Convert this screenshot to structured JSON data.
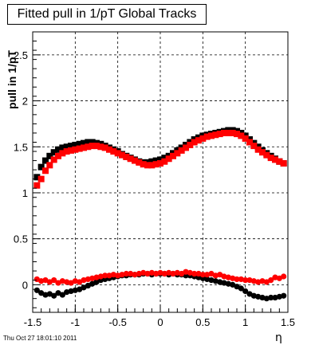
{
  "chart_data": {
    "type": "scatter",
    "title": "Fitted pull in 1/pT  Global Tracks",
    "xlabel": "η",
    "ylabel": "pull in 1/pT",
    "xlim": [
      -1.5,
      1.5
    ],
    "ylim": [
      -0.3,
      2.75
    ],
    "x_ticks": [
      "-1.5",
      "-1",
      "-0.5",
      "0",
      "0.5",
      "1",
      "1.5"
    ],
    "y_ticks": [
      "0",
      "0.5",
      "1",
      "1.5",
      "2",
      "2.5"
    ],
    "grid": true,
    "series": [
      {
        "color": "#000000",
        "x": [
          -1.45,
          -1.4,
          -1.35,
          -1.3,
          -1.25,
          -1.2,
          -1.15,
          -1.1,
          -1.05,
          -1.0,
          -0.95,
          -0.9,
          -0.85,
          -0.8,
          -0.75,
          -0.7,
          -0.65,
          -0.6,
          -0.55,
          -0.5,
          -0.45,
          -0.4,
          -0.35,
          -0.3,
          -0.25,
          -0.2,
          -0.15,
          -0.1,
          -0.05,
          0.0,
          0.05,
          0.1,
          0.15,
          0.2,
          0.25,
          0.3,
          0.35,
          0.4,
          0.45,
          0.5,
          0.55,
          0.6,
          0.65,
          0.7,
          0.75,
          0.8,
          0.85,
          0.9,
          0.95,
          1.0,
          1.05,
          1.1,
          1.15,
          1.2,
          1.25,
          1.3,
          1.35,
          1.4,
          1.45
        ],
        "y": [
          1.17,
          1.28,
          1.35,
          1.4,
          1.44,
          1.47,
          1.49,
          1.5,
          1.51,
          1.52,
          1.53,
          1.54,
          1.55,
          1.55,
          1.54,
          1.53,
          1.51,
          1.49,
          1.47,
          1.45,
          1.42,
          1.4,
          1.38,
          1.36,
          1.34,
          1.33,
          1.33,
          1.34,
          1.35,
          1.36,
          1.38,
          1.4,
          1.43,
          1.46,
          1.49,
          1.52,
          1.55,
          1.58,
          1.6,
          1.62,
          1.63,
          1.64,
          1.65,
          1.66,
          1.67,
          1.68,
          1.68,
          1.67,
          1.65,
          1.62,
          1.58,
          1.54,
          1.5,
          1.46,
          1.43,
          1.4,
          1.37,
          1.34,
          1.32
        ]
      },
      {
        "color": "#ff0000",
        "x": [
          -1.45,
          -1.4,
          -1.35,
          -1.3,
          -1.25,
          -1.2,
          -1.15,
          -1.1,
          -1.05,
          -1.0,
          -0.95,
          -0.9,
          -0.85,
          -0.8,
          -0.75,
          -0.7,
          -0.65,
          -0.6,
          -0.55,
          -0.5,
          -0.45,
          -0.4,
          -0.35,
          -0.3,
          -0.25,
          -0.2,
          -0.15,
          -0.1,
          -0.05,
          0.0,
          0.05,
          0.1,
          0.15,
          0.2,
          0.25,
          0.3,
          0.35,
          0.4,
          0.45,
          0.5,
          0.55,
          0.6,
          0.65,
          0.7,
          0.75,
          0.8,
          0.85,
          0.9,
          0.95,
          1.0,
          1.05,
          1.1,
          1.15,
          1.2,
          1.25,
          1.3,
          1.35,
          1.4,
          1.45
        ],
        "y": [
          1.08,
          1.15,
          1.24,
          1.3,
          1.36,
          1.4,
          1.43,
          1.45,
          1.46,
          1.47,
          1.48,
          1.49,
          1.5,
          1.51,
          1.51,
          1.5,
          1.49,
          1.47,
          1.45,
          1.43,
          1.41,
          1.39,
          1.37,
          1.35,
          1.33,
          1.31,
          1.3,
          1.3,
          1.31,
          1.32,
          1.34,
          1.37,
          1.4,
          1.43,
          1.46,
          1.49,
          1.52,
          1.55,
          1.57,
          1.59,
          1.61,
          1.62,
          1.63,
          1.64,
          1.65,
          1.65,
          1.65,
          1.64,
          1.62,
          1.59,
          1.55,
          1.51,
          1.47,
          1.44,
          1.41,
          1.38,
          1.36,
          1.34,
          1.32
        ]
      },
      {
        "color": "#000000",
        "x": [
          -1.45,
          -1.4,
          -1.35,
          -1.3,
          -1.25,
          -1.2,
          -1.15,
          -1.1,
          -1.05,
          -1.0,
          -0.95,
          -0.9,
          -0.85,
          -0.8,
          -0.75,
          -0.7,
          -0.65,
          -0.6,
          -0.55,
          -0.5,
          -0.45,
          -0.4,
          -0.35,
          -0.3,
          -0.25,
          -0.2,
          -0.15,
          -0.1,
          -0.05,
          0.0,
          0.05,
          0.1,
          0.15,
          0.2,
          0.25,
          0.3,
          0.35,
          0.4,
          0.45,
          0.5,
          0.55,
          0.6,
          0.65,
          0.7,
          0.75,
          0.8,
          0.85,
          0.9,
          0.95,
          1.0,
          1.05,
          1.1,
          1.15,
          1.2,
          1.25,
          1.3,
          1.35,
          1.4,
          1.45
        ],
        "y": [
          -0.06,
          -0.09,
          -0.11,
          -0.1,
          -0.12,
          -0.09,
          -0.11,
          -0.08,
          -0.07,
          -0.06,
          -0.05,
          -0.03,
          -0.01,
          0.01,
          0.03,
          0.05,
          0.06,
          0.07,
          0.08,
          0.09,
          0.1,
          0.1,
          0.11,
          0.11,
          0.11,
          0.12,
          0.12,
          0.11,
          0.12,
          0.12,
          0.12,
          0.11,
          0.12,
          0.11,
          0.11,
          0.1,
          0.1,
          0.09,
          0.08,
          0.07,
          0.06,
          0.05,
          0.04,
          0.03,
          0.02,
          0.01,
          0.0,
          -0.02,
          -0.04,
          -0.07,
          -0.1,
          -0.12,
          -0.13,
          -0.14,
          -0.15,
          -0.14,
          -0.14,
          -0.13,
          -0.12
        ]
      },
      {
        "color": "#ff0000",
        "x": [
          -1.45,
          -1.4,
          -1.35,
          -1.3,
          -1.25,
          -1.2,
          -1.15,
          -1.1,
          -1.05,
          -1.0,
          -0.95,
          -0.9,
          -0.85,
          -0.8,
          -0.75,
          -0.7,
          -0.65,
          -0.6,
          -0.55,
          -0.5,
          -0.45,
          -0.4,
          -0.35,
          -0.3,
          -0.25,
          -0.2,
          -0.15,
          -0.1,
          -0.05,
          0.0,
          0.05,
          0.1,
          0.15,
          0.2,
          0.25,
          0.3,
          0.35,
          0.4,
          0.45,
          0.5,
          0.55,
          0.6,
          0.65,
          0.7,
          0.75,
          0.8,
          0.85,
          0.9,
          0.95,
          1.0,
          1.05,
          1.1,
          1.15,
          1.2,
          1.25,
          1.3,
          1.35,
          1.4,
          1.45
        ],
        "y": [
          0.06,
          0.04,
          0.05,
          0.03,
          0.05,
          0.02,
          0.04,
          0.03,
          0.02,
          0.04,
          0.03,
          0.05,
          0.06,
          0.07,
          0.08,
          0.09,
          0.1,
          0.1,
          0.11,
          0.1,
          0.11,
          0.12,
          0.12,
          0.11,
          0.12,
          0.13,
          0.12,
          0.13,
          0.12,
          0.13,
          0.12,
          0.13,
          0.12,
          0.13,
          0.12,
          0.14,
          0.13,
          0.12,
          0.12,
          0.11,
          0.11,
          0.12,
          0.1,
          0.11,
          0.09,
          0.08,
          0.07,
          0.06,
          0.06,
          0.05,
          0.05,
          0.04,
          0.03,
          0.04,
          0.03,
          0.05,
          0.08,
          0.07,
          0.09
        ]
      }
    ]
  },
  "footer": "Thu Oct 27 18:01:10 2011"
}
